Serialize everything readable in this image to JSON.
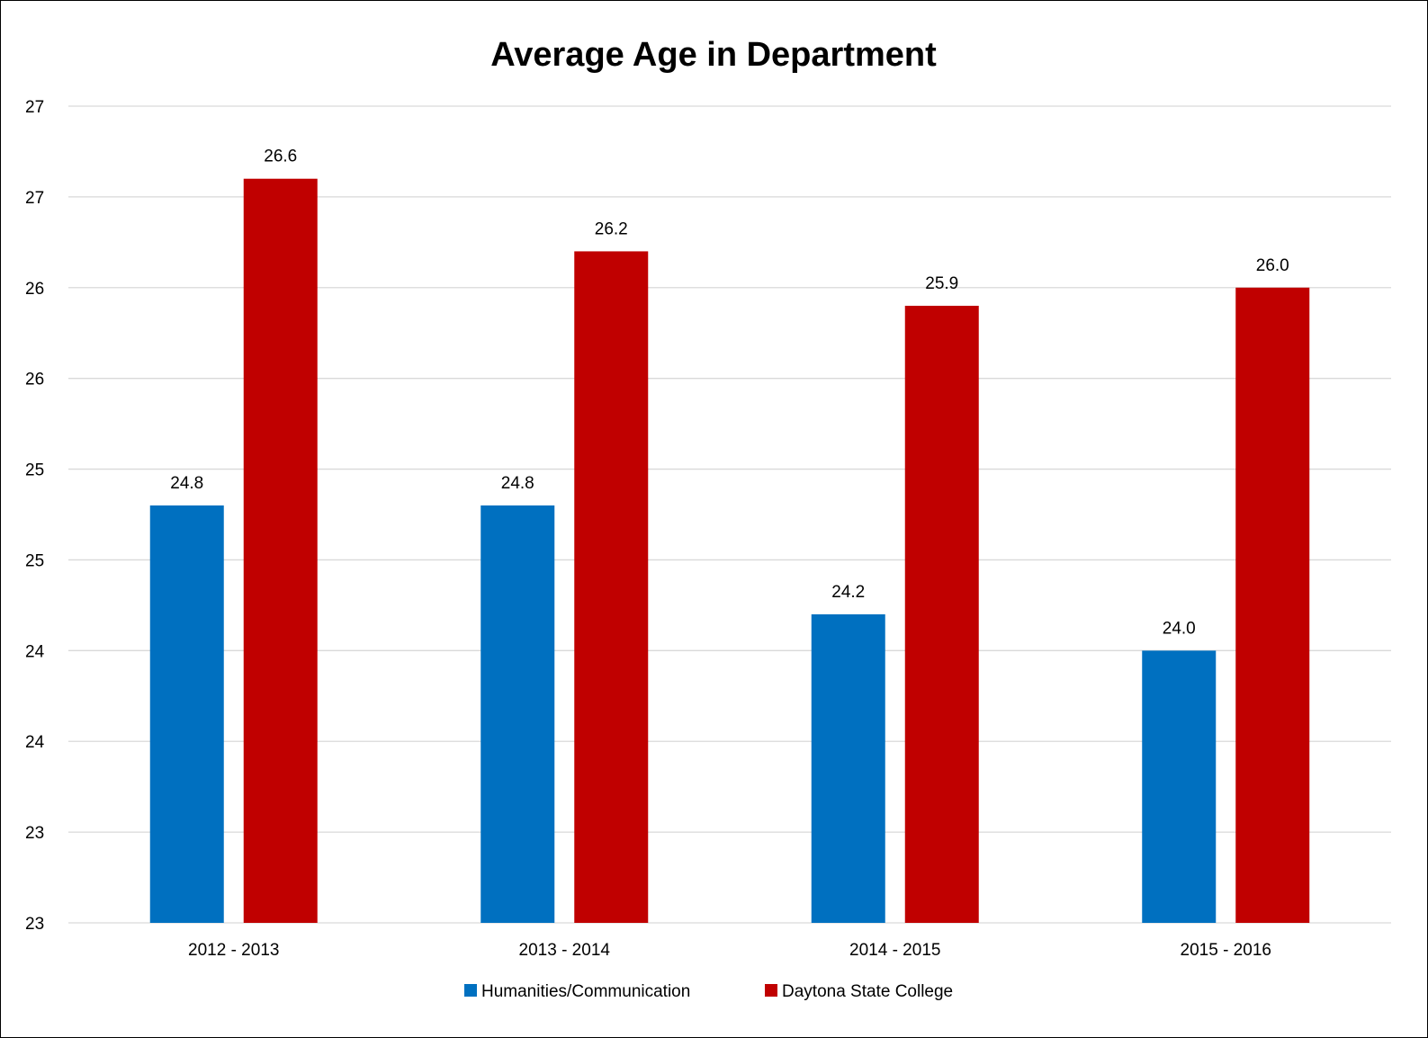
{
  "chart_data": {
    "type": "bar",
    "title": "Average Age in Department",
    "xlabel": "",
    "ylabel": "",
    "categories": [
      "2012 - 2013",
      "2013 - 2014",
      "2014 - 2015",
      "2015 - 2016"
    ],
    "series": [
      {
        "name": "Humanities/Communication",
        "color": "#0070C0",
        "values": [
          24.8,
          24.8,
          24.2,
          24.0
        ],
        "labels": [
          "24.8",
          "24.8",
          "24.2",
          "24.0"
        ]
      },
      {
        "name": "Daytona State College",
        "color": "#C00000",
        "values": [
          26.6,
          26.2,
          25.9,
          26.0
        ],
        "labels": [
          "26.6",
          "26.2",
          "25.9",
          "26.0"
        ]
      }
    ],
    "ylim": [
      22.5,
      27.0
    ],
    "y_ticks": [
      22.5,
      23.0,
      23.5,
      24.0,
      24.5,
      25.0,
      25.5,
      26.0,
      26.5,
      27.0
    ],
    "y_tick_labels": [
      "23",
      "23",
      "24",
      "24",
      "25",
      "25",
      "26",
      "26",
      "27",
      "27"
    ],
    "grid": true,
    "legend_position": "bottom"
  }
}
